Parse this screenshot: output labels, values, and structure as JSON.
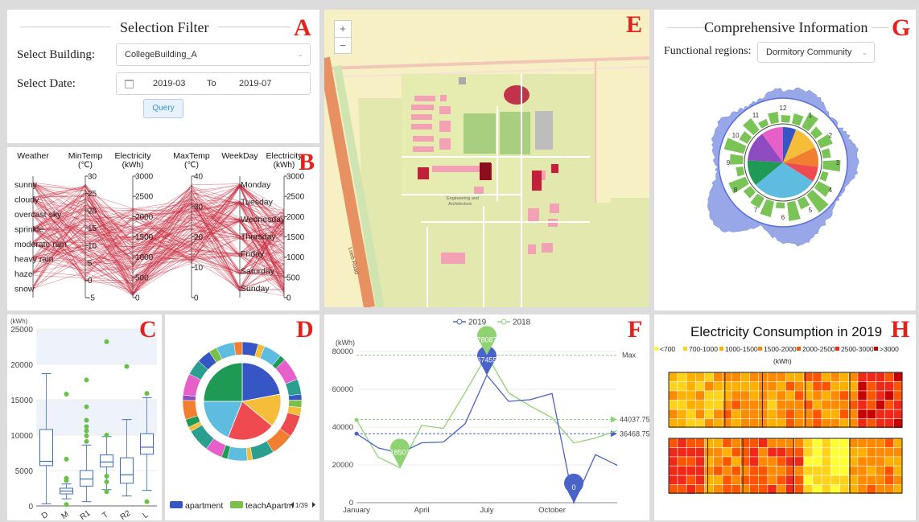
{
  "panels": {
    "a": {
      "letter": "A",
      "title": "Selection Filter",
      "building_label": "Select Building:",
      "building_value": "CollegeBuilding_A",
      "date_label": "Select Date:",
      "date_start": "2019-03",
      "date_to": "To",
      "date_end": "2019-07",
      "query_label": "Query"
    },
    "b": {
      "letter": "B"
    },
    "c": {
      "letter": "C"
    },
    "d": {
      "letter": "D"
    },
    "e": {
      "letter": "E",
      "zoom_in": "+",
      "zoom_out": "−",
      "map_labels": [
        "Engineering and",
        "Architecture",
        "Loeb Road"
      ]
    },
    "f": {
      "letter": "F"
    },
    "g": {
      "letter": "G",
      "title": "Comprehensive Information",
      "region_label": "Functional regions:",
      "region_value": "Dormitory Community"
    },
    "h": {
      "letter": "H"
    }
  },
  "icons": {
    "calendar": "calendar-icon",
    "chevron": "chevron-down-icon",
    "prev": "triangle-left-icon",
    "next": "triangle-right-icon"
  },
  "chart_data": [
    {
      "id": "parallel",
      "type": "line",
      "axes": [
        {
          "name": "Weather",
          "unit": "",
          "categories": [
            "sunny",
            "cloudy",
            "overcast sky",
            "sprinkle",
            "moderate rain",
            "heavy rain",
            "haze",
            "snow"
          ]
        },
        {
          "name": "MinTemp",
          "unit": "(℃)",
          "ticks": [
            30,
            25,
            20,
            15,
            10,
            5,
            0,
            -5
          ],
          "range": [
            -5,
            30
          ]
        },
        {
          "name": "Electricity",
          "unit": "(kWh)",
          "ticks": [
            3000,
            2500,
            2000,
            1500,
            1000,
            500,
            0
          ],
          "range": [
            0,
            3000
          ]
        },
        {
          "name": "MaxTemp",
          "unit": "(℃)",
          "ticks": [
            40,
            30,
            20,
            10,
            0
          ],
          "range": [
            0,
            40
          ]
        },
        {
          "name": "WeekDay",
          "unit": "",
          "categories": [
            "Monday",
            "Tuesday",
            "Wednesday",
            "Thursday",
            "Friday",
            "Saturday",
            "Sunday"
          ]
        },
        {
          "name": "Electricity",
          "unit": "(kWh)",
          "ticks": [
            3000,
            2500,
            2000,
            1500,
            1000,
            500,
            0
          ],
          "range": [
            0,
            3000
          ]
        }
      ],
      "line_color": "#c8283c"
    },
    {
      "id": "boxplot",
      "type": "box",
      "ylabel": "(kWh)",
      "ylim": [
        0,
        25000
      ],
      "yticks": [
        0,
        5000,
        10000,
        15000,
        20000,
        25000
      ],
      "categories": [
        "D",
        "M",
        "R1",
        "T",
        "R2",
        "L"
      ],
      "boxes": [
        {
          "min": 300,
          "q1": 5700,
          "median": 6300,
          "q3": 10800,
          "max": 18700,
          "outliers": []
        },
        {
          "min": 1000,
          "q1": 1700,
          "median": 2100,
          "q3": 2500,
          "max": 3100,
          "outliers": [
            3600,
            3900,
            6600,
            15800,
            200
          ]
        },
        {
          "min": 600,
          "q1": 2800,
          "median": 3800,
          "q3": 5000,
          "max": 8600,
          "outliers": [
            9100,
            9900,
            10600,
            11200,
            12100,
            14000,
            17800
          ]
        },
        {
          "min": 2300,
          "q1": 5500,
          "median": 6200,
          "q3": 7200,
          "max": 9800,
          "outliers": [
            10000,
            2000,
            3400,
            4200,
            23200
          ]
        },
        {
          "min": 1400,
          "q1": 3200,
          "median": 4400,
          "q3": 6800,
          "max": 12200,
          "outliers": [
            19700
          ]
        },
        {
          "min": 2200,
          "q1": 7300,
          "median": 8300,
          "q3": 10200,
          "max": 15300,
          "outliers": [
            15900,
            600
          ]
        }
      ],
      "point_color": "#6cc04a",
      "box_color": "#3c6fbf"
    },
    {
      "id": "donut",
      "type": "pie",
      "inner": [
        {
          "value": 22,
          "color": "#3656c6"
        },
        {
          "value": 14,
          "color": "#f5bd3a"
        },
        {
          "value": 20,
          "color": "#ee4a4f"
        },
        {
          "value": 19,
          "color": "#5ebce0"
        },
        {
          "value": 25,
          "color": "#1e9a55"
        }
      ],
      "outer_colors": [
        "#3656c6",
        "#7cc04a",
        "#f5bd3a",
        "#ee4a4f",
        "#5ebce0",
        "#1e9a55",
        "#f07f32",
        "#8f4cc0",
        "#e760c9",
        "#2b9f8f"
      ],
      "legend": [
        {
          "label": "apartment",
          "color": "#3656c6"
        },
        {
          "label": "teachApartm",
          "color": "#7cc04a"
        }
      ],
      "pager": "1/39"
    },
    {
      "id": "linechart",
      "type": "line",
      "ylabel": "(kWh)",
      "ylim": [
        0,
        80000
      ],
      "yticks": [
        0,
        20000,
        40000,
        60000,
        80000
      ],
      "xticks": [
        "January",
        "April",
        "July",
        "October"
      ],
      "series": [
        {
          "name": "2019",
          "color": "#4a63c9",
          "values": [
            36500,
            29000,
            26200,
            31700,
            32100,
            41800,
            67455,
            53600,
            54500,
            57800,
            0,
            25400,
            19800
          ]
        },
        {
          "name": "2018",
          "color": "#8fd274",
          "values": [
            43800,
            24100,
            18501,
            40900,
            39300,
            58400,
            78087,
            58100,
            51100,
            45000,
            31600,
            34200,
            38200
          ]
        }
      ],
      "markers": [
        {
          "series": "2019",
          "label": "67455"
        },
        {
          "series": "2018",
          "label": "78087"
        },
        {
          "series": "2018",
          "label": "18501"
        },
        {
          "series": "2019",
          "label": "0"
        }
      ],
      "refs": [
        {
          "label": "Max"
        },
        {
          "label": "44037.75",
          "value": 44037.75
        },
        {
          "label": "36468.75",
          "value": 36468.75
        }
      ]
    },
    {
      "id": "radial",
      "type": "pie",
      "hours": [
        "12",
        "1",
        "2",
        "3",
        "4",
        "5",
        "6",
        "7",
        "8",
        "9",
        "10",
        "11"
      ],
      "pie": [
        {
          "value": 6,
          "color": "#3656c6"
        },
        {
          "value": 12,
          "color": "#f5bd3a"
        },
        {
          "value": 9,
          "color": "#f07f32"
        },
        {
          "value": 7,
          "color": "#ee4a4f"
        },
        {
          "value": 30,
          "color": "#5ebce0"
        },
        {
          "value": 12,
          "color": "#1e9a55"
        },
        {
          "value": 14,
          "color": "#8f4cc0"
        },
        {
          "value": 10,
          "color": "#e760c9"
        }
      ],
      "bars": [
        10,
        14,
        22,
        12,
        18,
        11,
        24,
        9,
        20,
        30,
        14,
        26,
        8,
        22,
        16,
        12,
        25,
        10,
        18,
        28,
        13,
        20,
        9,
        15
      ]
    },
    {
      "id": "heatmap",
      "type": "heatmap",
      "title": "Electricity Consumption in 2019",
      "legend": [
        {
          "label": "<700",
          "color": "#ffff33"
        },
        {
          "label": "700-1000",
          "color": "#ffd31a"
        },
        {
          "label": "1000-1500",
          "color": "#ffb000"
        },
        {
          "label": "1500-2000",
          "color": "#ff8a00"
        },
        {
          "label": "2000-2500",
          "color": "#ff5500"
        },
        {
          "label": "2500-3000",
          "color": "#f02818"
        },
        {
          "label": ">3000",
          "color": "#c80000"
        }
      ],
      "unit": "(kWh)"
    }
  ]
}
